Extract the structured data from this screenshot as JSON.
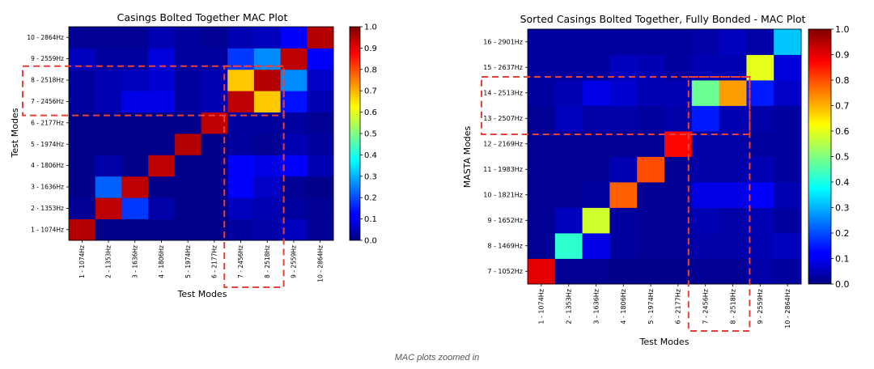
{
  "caption": "MAC plots zoomed in",
  "colorbar_ticks": [
    "0.0",
    "0.1",
    "0.2",
    "0.3",
    "0.4",
    "0.5",
    "0.6",
    "0.7",
    "0.8",
    "0.9",
    "1.0"
  ],
  "highlight_color": "#e8413a",
  "chart_data": [
    {
      "type": "heatmap",
      "title": "Casings Bolted Together MAC Plot",
      "xlabel": "Test Modes",
      "ylabel": "Test Modes",
      "vmin": 0.0,
      "vmax": 1.0,
      "colormap": "jet",
      "x_categories": [
        "1 - 1074Hz",
        "2 - 1353Hz",
        "3 - 1636Hz",
        "4 - 1806Hz",
        "5 - 1974Hz",
        "6 - 2177Hz",
        "7 - 2456Hz",
        "8 - 2518Hz",
        "9 - 2559Hz",
        "10 - 2864Hz"
      ],
      "y_categories": [
        "1 - 1074Hz",
        "2 - 1353Hz",
        "3 - 1636Hz",
        "4 - 1806Hz",
        "5 - 1974Hz",
        "6 - 2177Hz",
        "7 - 2456Hz",
        "8 - 2518Hz",
        "9 - 2559Hz",
        "10 - 2864Hz"
      ],
      "values": [
        [
          0.95,
          0.01,
          0.01,
          0.01,
          0.01,
          0.01,
          0.03,
          0.04,
          0.06,
          0.02
        ],
        [
          0.02,
          0.94,
          0.18,
          0.04,
          0.01,
          0.01,
          0.06,
          0.05,
          0.03,
          0.02
        ],
        [
          0.01,
          0.22,
          0.94,
          0.01,
          0.01,
          0.01,
          0.12,
          0.07,
          0.02,
          0.01
        ],
        [
          0.01,
          0.04,
          0.01,
          0.94,
          0.01,
          0.01,
          0.12,
          0.1,
          0.12,
          0.05
        ],
        [
          0.01,
          0.01,
          0.01,
          0.01,
          0.95,
          0.01,
          0.03,
          0.02,
          0.05,
          0.03
        ],
        [
          0.01,
          0.01,
          0.01,
          0.01,
          0.01,
          0.94,
          0.03,
          0.03,
          0.03,
          0.02
        ],
        [
          0.03,
          0.05,
          0.1,
          0.1,
          0.03,
          0.05,
          0.94,
          0.68,
          0.14,
          0.05
        ],
        [
          0.03,
          0.05,
          0.06,
          0.08,
          0.03,
          0.05,
          0.68,
          0.95,
          0.26,
          0.07
        ],
        [
          0.06,
          0.03,
          0.03,
          0.09,
          0.03,
          0.03,
          0.18,
          0.26,
          0.94,
          0.12
        ],
        [
          0.02,
          0.02,
          0.02,
          0.05,
          0.03,
          0.02,
          0.05,
          0.06,
          0.12,
          0.95
        ]
      ],
      "highlight_rows": [
        6,
        7
      ],
      "highlight_cols": [
        6,
        7
      ]
    },
    {
      "type": "heatmap",
      "title": "Sorted Casings Bolted Together, Fully Bonded - MAC Plot",
      "xlabel": "Test Modes",
      "ylabel": "MASTA Modes",
      "vmin": 0.0,
      "vmax": 1.0,
      "colormap": "jet",
      "x_categories": [
        "1 - 1074Hz",
        "2 - 1353Hz",
        "3 - 1636Hz",
        "4 - 1806Hz",
        "5 - 1974Hz",
        "6 - 2177Hz",
        "7 - 2456Hz",
        "8 - 2518Hz",
        "9 - 2559Hz",
        "10 - 2864Hz"
      ],
      "y_categories": [
        "7 - 1052Hz",
        "8 - 1469Hz",
        "9 - 1652Hz",
        "10 - 1821Hz",
        "11 - 1983Hz",
        "12 - 2169Hz",
        "13 - 2507Hz",
        "14 - 2513Hz",
        "15 - 2637Hz",
        "16 - 2901Hz"
      ],
      "values": [
        [
          0.9,
          0.02,
          0.02,
          0.01,
          0.01,
          0.01,
          0.02,
          0.02,
          0.04,
          0.03
        ],
        [
          0.02,
          0.42,
          0.1,
          0.03,
          0.02,
          0.02,
          0.04,
          0.04,
          0.05,
          0.06
        ],
        [
          0.02,
          0.06,
          0.58,
          0.03,
          0.02,
          0.02,
          0.05,
          0.04,
          0.05,
          0.03
        ],
        [
          0.02,
          0.02,
          0.03,
          0.78,
          0.02,
          0.02,
          0.1,
          0.1,
          0.12,
          0.05
        ],
        [
          0.02,
          0.02,
          0.02,
          0.05,
          0.8,
          0.02,
          0.04,
          0.04,
          0.05,
          0.03
        ],
        [
          0.02,
          0.02,
          0.02,
          0.02,
          0.02,
          0.87,
          0.04,
          0.04,
          0.03,
          0.03
        ],
        [
          0.02,
          0.06,
          0.04,
          0.04,
          0.03,
          0.04,
          0.15,
          0.05,
          0.04,
          0.03
        ],
        [
          0.03,
          0.05,
          0.1,
          0.08,
          0.05,
          0.05,
          0.48,
          0.72,
          0.15,
          0.07
        ],
        [
          0.03,
          0.03,
          0.03,
          0.06,
          0.05,
          0.03,
          0.05,
          0.05,
          0.6,
          0.09
        ],
        [
          0.03,
          0.03,
          0.03,
          0.03,
          0.03,
          0.03,
          0.04,
          0.06,
          0.04,
          0.32
        ]
      ],
      "highlight_rows": [
        6,
        7
      ],
      "highlight_cols": [
        6,
        7
      ]
    }
  ]
}
